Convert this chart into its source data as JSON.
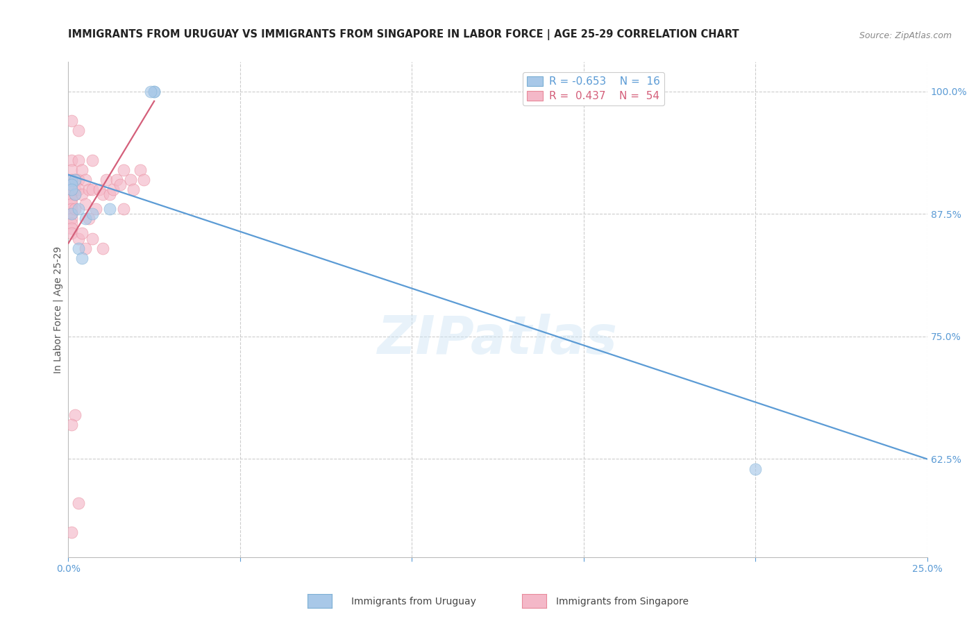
{
  "title": "IMMIGRANTS FROM URUGUAY VS IMMIGRANTS FROM SINGAPORE IN LABOR FORCE | AGE 25-29 CORRELATION CHART",
  "source": "Source: ZipAtlas.com",
  "ylabel": "In Labor Force | Age 25-29",
  "ylabel_tick_vals": [
    1.0,
    0.875,
    0.75,
    0.625
  ],
  "ylabel_tick_labels": [
    "100.0%",
    "87.5%",
    "75.0%",
    "62.5%"
  ],
  "xmin": 0.0,
  "xmax": 0.25,
  "ymin": 0.525,
  "ymax": 1.03,
  "watermark": "ZIPatlas",
  "legend_blue_label": "R = -0.653    N =  16",
  "legend_pink_label": "R =  0.437    N =  54",
  "color_blue_fill": "#a8c8e8",
  "color_blue_edge": "#7bafd4",
  "color_pink_fill": "#f4b8c8",
  "color_pink_edge": "#e8899a",
  "color_blue_line": "#5b9bd5",
  "color_pink_line": "#d45f7a",
  "color_grid": "#cccccc",
  "color_right_axis": "#5b9bd5",
  "blue_x": [
    0.001,
    0.002,
    0.001,
    0.002,
    0.001,
    0.001,
    0.003,
    0.005,
    0.003,
    0.004,
    0.007,
    0.012,
    0.025,
    0.025,
    0.024,
    0.2
  ],
  "blue_y": [
    0.909,
    0.91,
    0.905,
    0.895,
    0.9,
    0.875,
    0.88,
    0.87,
    0.84,
    0.83,
    0.875,
    0.88,
    1.0,
    1.0,
    1.0,
    0.615
  ],
  "pink_x": [
    0.001,
    0.001,
    0.001,
    0.001,
    0.001,
    0.001,
    0.001,
    0.001,
    0.001,
    0.001,
    0.001,
    0.001,
    0.001,
    0.001,
    0.001,
    0.001,
    0.002,
    0.002,
    0.002,
    0.002,
    0.002,
    0.003,
    0.003,
    0.003,
    0.003,
    0.003,
    0.004,
    0.004,
    0.004,
    0.005,
    0.005,
    0.005,
    0.006,
    0.006,
    0.007,
    0.007,
    0.007,
    0.008,
    0.009,
    0.01,
    0.01,
    0.011,
    0.012,
    0.013,
    0.014,
    0.015,
    0.016,
    0.016,
    0.018,
    0.019,
    0.021,
    0.022,
    0.001,
    0.003
  ],
  "pink_y": [
    0.97,
    0.93,
    0.92,
    0.91,
    0.905,
    0.9,
    0.895,
    0.89,
    0.885,
    0.88,
    0.875,
    0.87,
    0.865,
    0.86,
    0.855,
    0.55,
    0.91,
    0.9,
    0.895,
    0.88,
    0.67,
    0.96,
    0.93,
    0.91,
    0.9,
    0.85,
    0.92,
    0.895,
    0.855,
    0.91,
    0.885,
    0.84,
    0.9,
    0.87,
    0.93,
    0.9,
    0.85,
    0.88,
    0.9,
    0.895,
    0.84,
    0.91,
    0.895,
    0.9,
    0.91,
    0.905,
    0.92,
    0.88,
    0.91,
    0.9,
    0.92,
    0.91,
    0.66,
    0.58
  ],
  "blue_trend": [
    0.0,
    0.25,
    0.915,
    0.625
  ],
  "pink_trend": [
    0.0,
    0.025,
    0.845,
    0.99
  ],
  "x_tick_positions": [
    0.0,
    0.05,
    0.1,
    0.15,
    0.2,
    0.25
  ]
}
